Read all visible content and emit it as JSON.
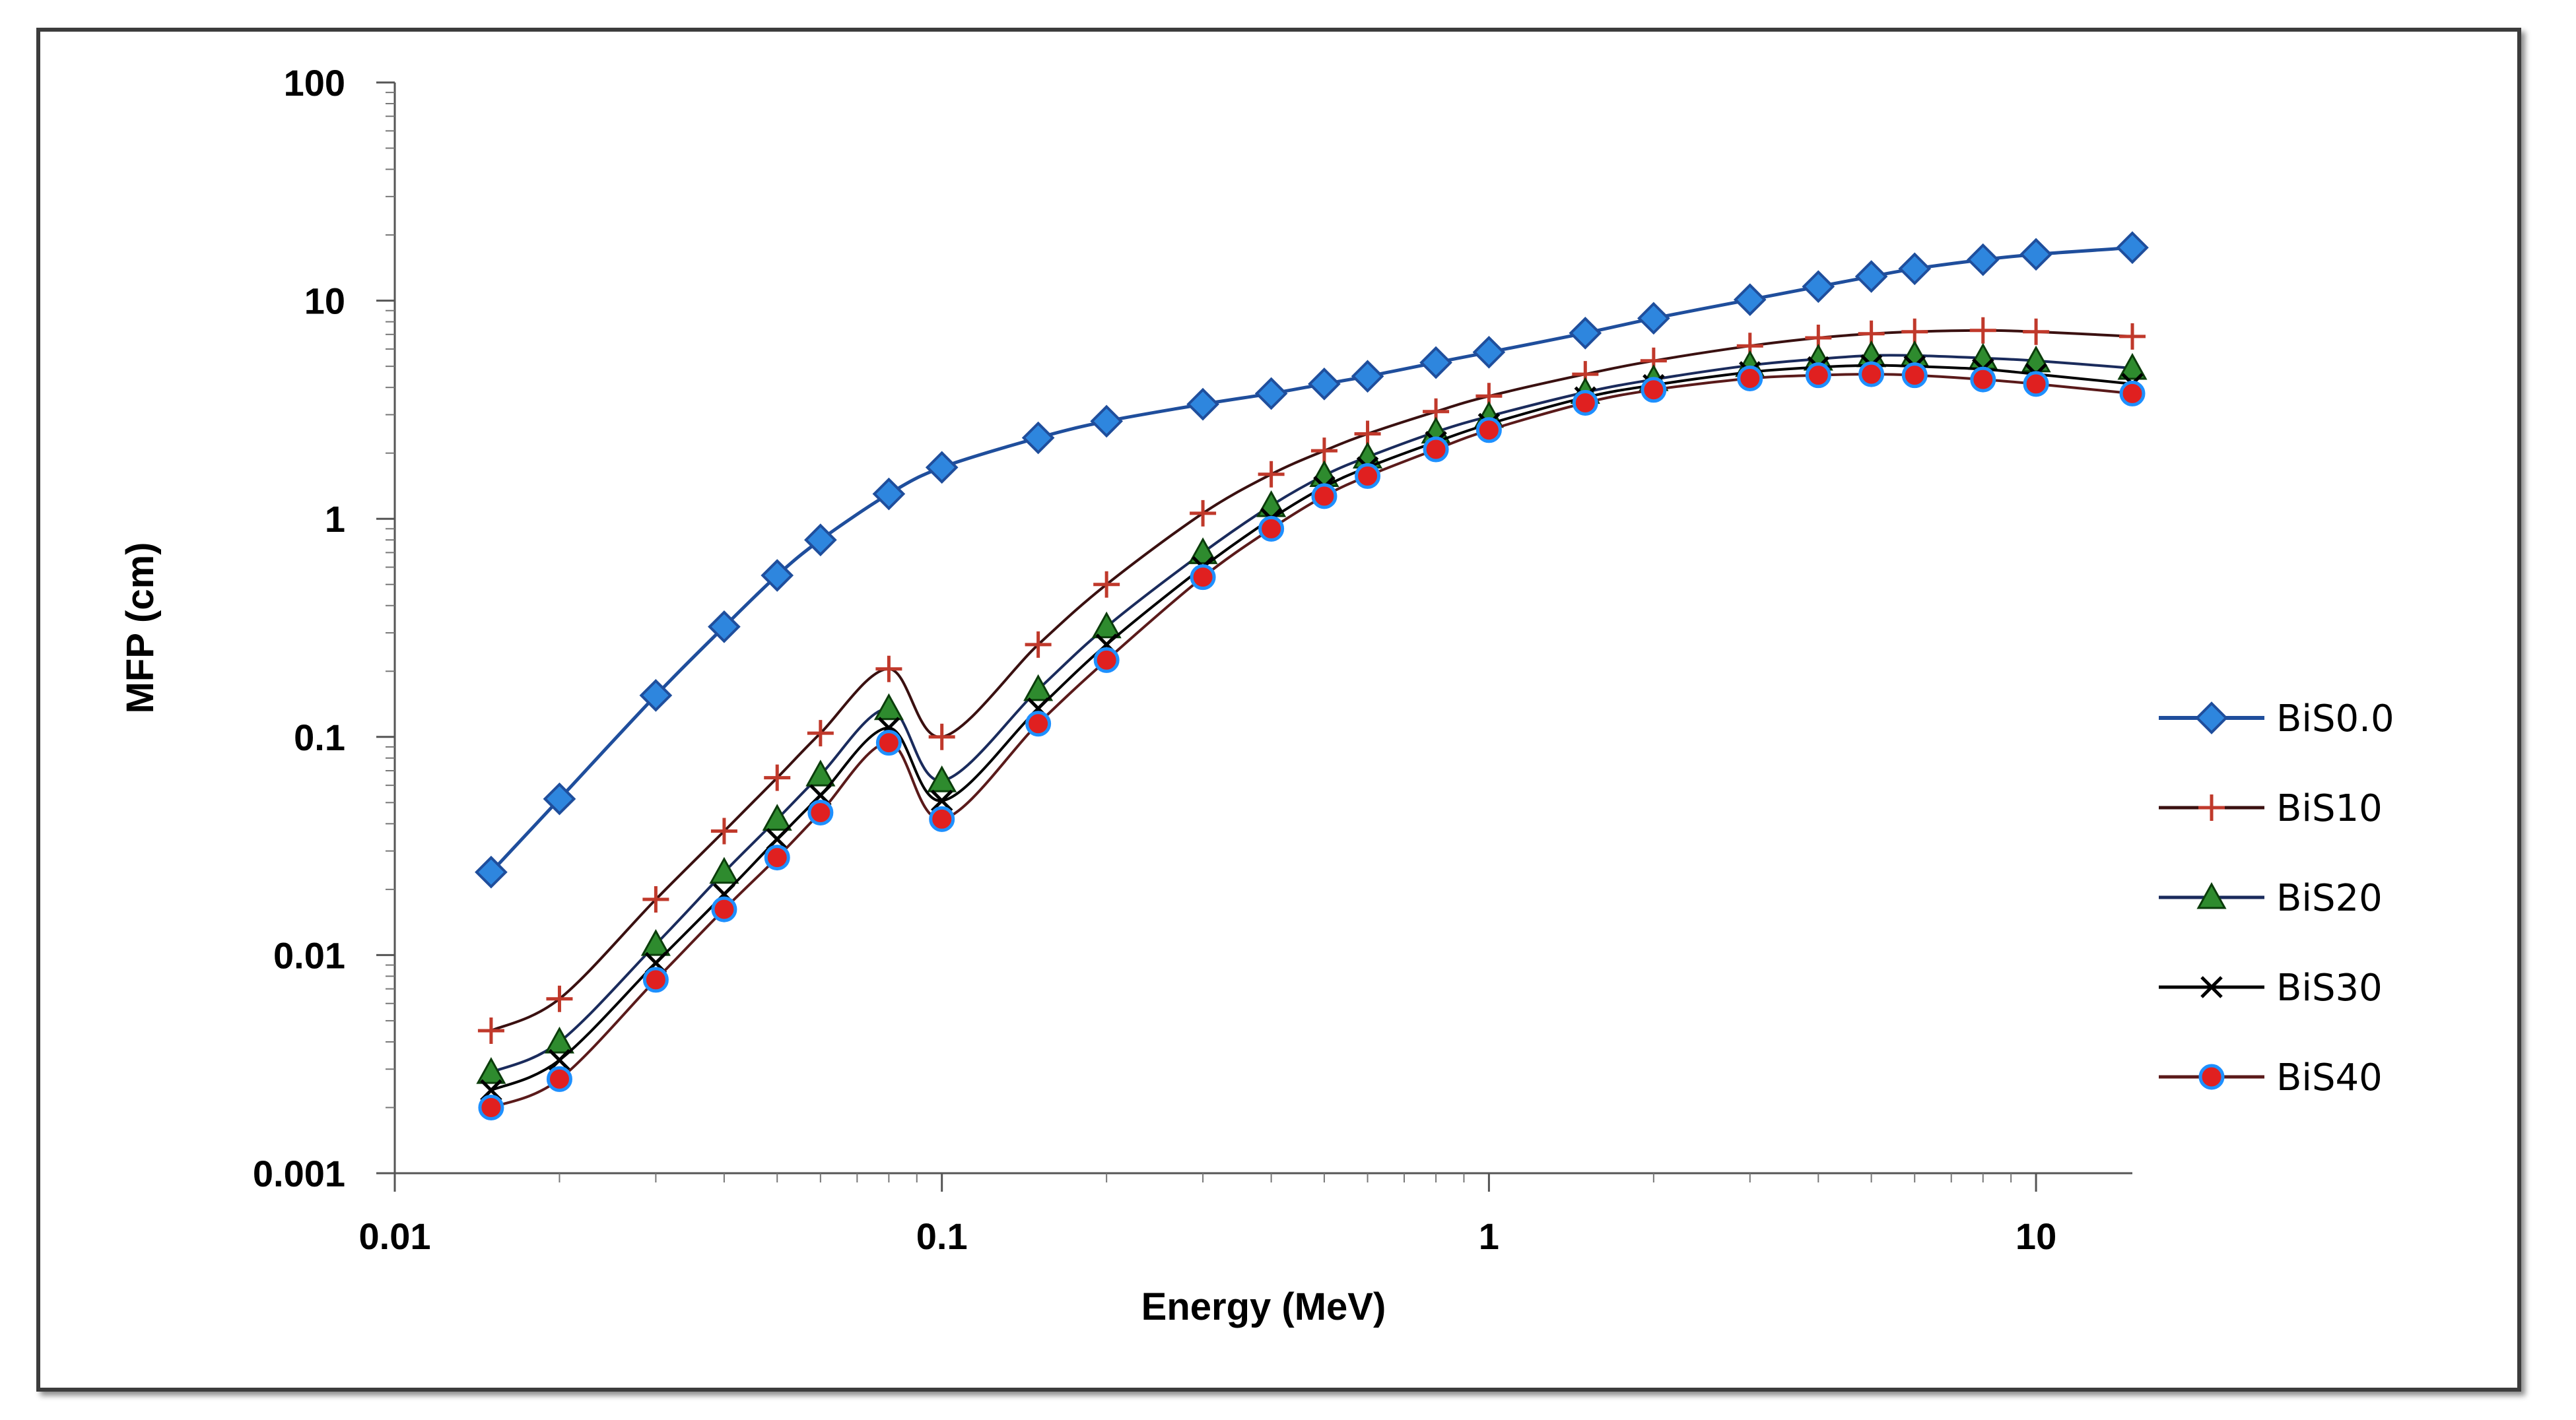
{
  "chart_data": {
    "type": "line",
    "title": "",
    "xlabel": "Energy (MeV)",
    "ylabel": "MFP (cm)",
    "x_scale": "log",
    "y_scale": "log",
    "xlim": [
      0.01,
      15
    ],
    "ylim": [
      0.001,
      100
    ],
    "x_ticks": [
      0.01,
      0.1,
      1,
      10
    ],
    "x_tick_labels": [
      "0.01",
      "0.1",
      "1",
      "10"
    ],
    "y_ticks": [
      0.001,
      0.01,
      0.1,
      1,
      10,
      100
    ],
    "y_tick_labels": [
      "0.001",
      "0.01",
      "0.1",
      "1",
      "10",
      "100"
    ],
    "grid": false,
    "legend_position": "right",
    "x": [
      0.015,
      0.02,
      0.03,
      0.04,
      0.05,
      0.06,
      0.08,
      0.1,
      0.15,
      0.2,
      0.3,
      0.4,
      0.5,
      0.6,
      0.8,
      1,
      1.5,
      2,
      3,
      4,
      5,
      6,
      8,
      10,
      15
    ],
    "series": [
      {
        "name": "BiS0.0",
        "marker": "diamond",
        "color": "#1f4e9c",
        "marker_color": "#2e86de",
        "line_width": 5,
        "values": [
          0.024,
          0.052,
          0.155,
          0.32,
          0.55,
          0.8,
          1.3,
          1.72,
          2.35,
          2.8,
          3.35,
          3.75,
          4.15,
          4.5,
          5.2,
          5.8,
          7.1,
          8.3,
          10.1,
          11.6,
          12.9,
          14.0,
          15.4,
          16.3,
          17.5
        ]
      },
      {
        "name": "BiS10",
        "marker": "plus",
        "color": "#3a1010",
        "marker_color": "#c0392b",
        "line_width": 4,
        "values": [
          0.0045,
          0.0063,
          0.018,
          0.037,
          0.065,
          0.104,
          0.205,
          0.1,
          0.265,
          0.5,
          1.06,
          1.6,
          2.05,
          2.45,
          3.1,
          3.65,
          4.6,
          5.3,
          6.2,
          6.75,
          7.05,
          7.2,
          7.3,
          7.2,
          6.85
        ]
      },
      {
        "name": "BiS20",
        "marker": "triangle",
        "color": "#1a2b5c",
        "marker_color": "#2e8b2e",
        "line_width": 4,
        "values": [
          0.0029,
          0.004,
          0.0112,
          0.024,
          0.042,
          0.067,
          0.135,
          0.063,
          0.165,
          0.32,
          0.7,
          1.15,
          1.58,
          1.92,
          2.5,
          2.95,
          3.8,
          4.35,
          5.05,
          5.4,
          5.6,
          5.6,
          5.45,
          5.3,
          4.9
        ]
      },
      {
        "name": "BiS30",
        "marker": "cross",
        "color": "#000000",
        "marker_color": "#000000",
        "line_width": 4,
        "values": [
          0.0024,
          0.0033,
          0.0092,
          0.019,
          0.034,
          0.054,
          0.11,
          0.051,
          0.135,
          0.265,
          0.6,
          1.0,
          1.4,
          1.72,
          2.25,
          2.72,
          3.6,
          4.1,
          4.7,
          4.95,
          5.05,
          5.0,
          4.85,
          4.6,
          4.15
        ]
      },
      {
        "name": "BiS40",
        "marker": "circle",
        "color": "#5a1a1a",
        "marker_color": "#e02020",
        "marker_edge": "#1e90ff",
        "line_width": 4,
        "values": [
          0.002,
          0.0027,
          0.0077,
          0.0162,
          0.028,
          0.045,
          0.094,
          0.042,
          0.115,
          0.225,
          0.54,
          0.9,
          1.27,
          1.57,
          2.08,
          2.55,
          3.4,
          3.9,
          4.4,
          4.55,
          4.6,
          4.55,
          4.35,
          4.15,
          3.75
        ]
      }
    ]
  }
}
